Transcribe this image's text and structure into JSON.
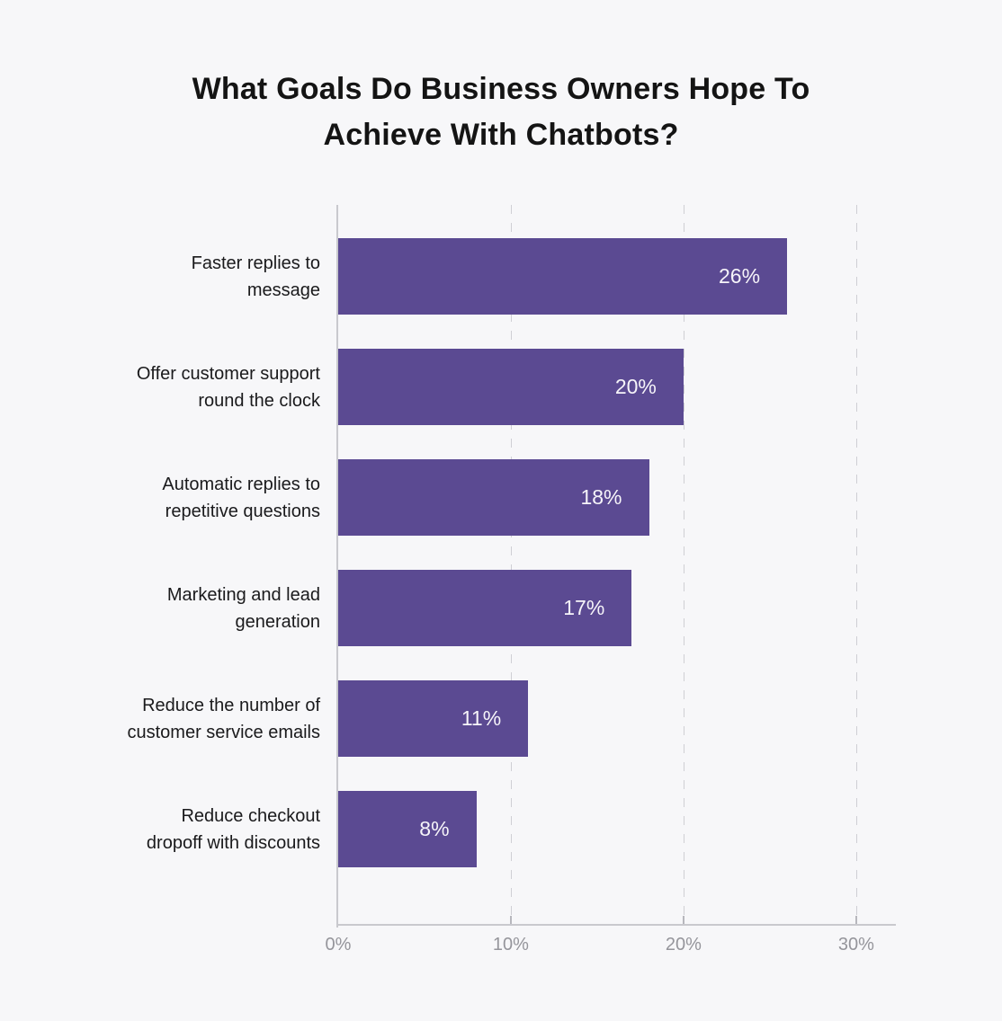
{
  "chart_data": {
    "type": "bar",
    "orientation": "horizontal",
    "title": "What Goals Do Business Owners Hope To Achieve With Chatbots?",
    "title_line1": "What Goals Do Business Owners Hope To",
    "title_line2": "Achieve With Chatbots?",
    "categories": [
      "Faster replies to message",
      "Offer customer support round the clock",
      "Automatic replies to repetitive questions",
      "Marketing and lead generation",
      "Reduce the number of customer service emails",
      "Reduce checkout dropoff with discounts"
    ],
    "category_lines": [
      [
        "Faster replies to",
        "message"
      ],
      [
        "Offer customer support",
        "round the clock"
      ],
      [
        "Automatic replies to",
        "repetitive questions"
      ],
      [
        "Marketing and lead",
        "generation"
      ],
      [
        "Reduce the number of",
        "customer service emails"
      ],
      [
        "Reduce checkout",
        "dropoff with discounts"
      ]
    ],
    "values": [
      26,
      20,
      18,
      17,
      11,
      8
    ],
    "value_labels": [
      "26%",
      "20%",
      "18%",
      "17%",
      "11%",
      "8%"
    ],
    "x_ticks": [
      {
        "value": 0,
        "label": "0%"
      },
      {
        "value": 10,
        "label": "10%"
      },
      {
        "value": 20,
        "label": "20%"
      },
      {
        "value": 30,
        "label": "30%"
      }
    ],
    "xlim": [
      0,
      32.3
    ],
    "xlabel": "",
    "ylabel": "",
    "grid": "vertical-dashed",
    "legend": "none",
    "colors": {
      "bar": "#5b4a92",
      "value_label": "#f6f4f9",
      "background": "#f7f7f9",
      "axis_line": "#c9c9ce",
      "gridline": "#cfcfd4",
      "tick_label": "#95959b",
      "category_label": "#1a1a1c",
      "title": "#141414"
    }
  }
}
